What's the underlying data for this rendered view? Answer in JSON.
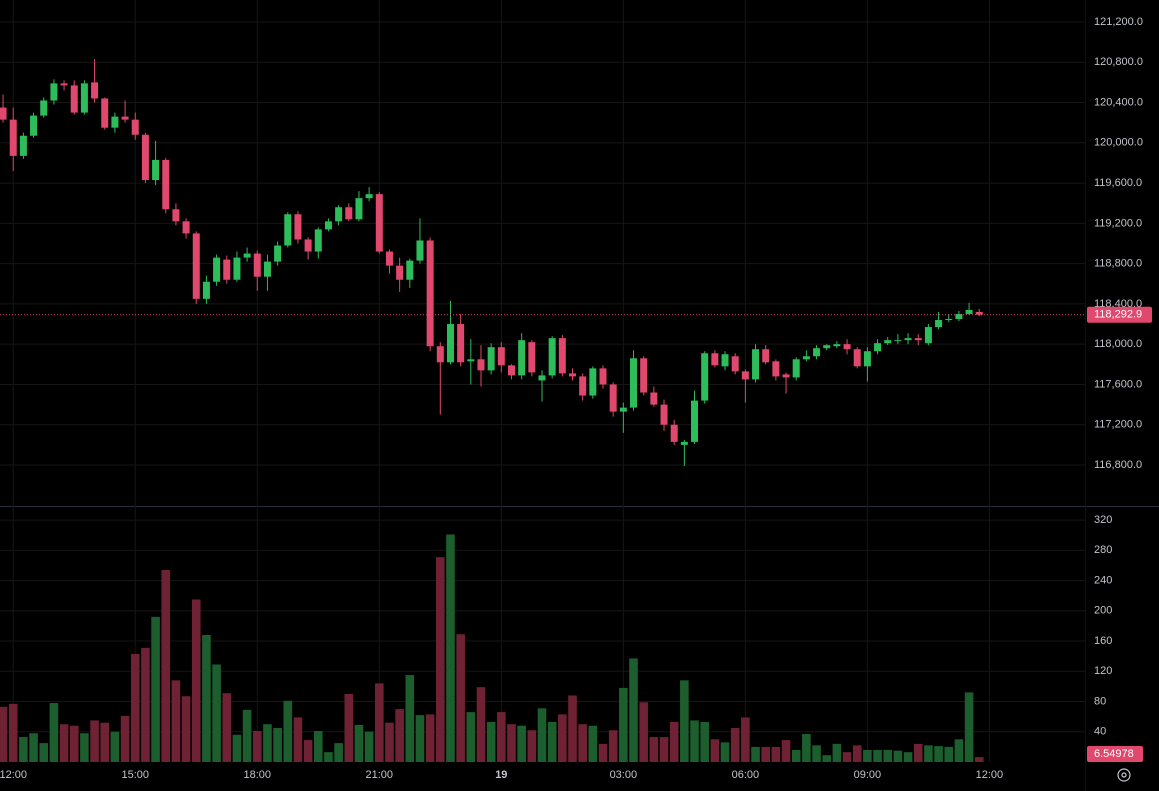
{
  "chart_data": {
    "type": "candlestick",
    "up_color": "#2dbd5a",
    "down_color": "#e0486e",
    "volume_up_color": "#1c5e2d",
    "volume_down_color": "#6e2234",
    "grid": true,
    "xlim": [
      -0.3,
      106.4
    ],
    "xticks": [
      {
        "value": 1,
        "label": "12:00"
      },
      {
        "value": 13,
        "label": "15:00"
      },
      {
        "value": 25,
        "label": "18:00"
      },
      {
        "value": 37,
        "label": "21:00"
      },
      {
        "value": 49,
        "label": "19"
      },
      {
        "value": 61,
        "label": "03:00"
      },
      {
        "value": 73,
        "label": "06:00"
      },
      {
        "value": 85,
        "label": "09:00"
      },
      {
        "value": 97,
        "label": "12:00"
      }
    ],
    "ylim": [
      116403,
      121418
    ],
    "yticks": [
      {
        "value": 116800,
        "label": "116,800.0"
      },
      {
        "value": 117200,
        "label": "117,200.0"
      },
      {
        "value": 117600,
        "label": "117,600.0"
      },
      {
        "value": 118000,
        "label": "118,000.0"
      },
      {
        "value": 118400,
        "label": "118,400.0"
      },
      {
        "value": 118800,
        "label": "118,800.0"
      },
      {
        "value": 119200,
        "label": "119,200.0"
      },
      {
        "value": 119600,
        "label": "119,600.0"
      },
      {
        "value": 120000,
        "label": "120,000.0"
      },
      {
        "value": 120400,
        "label": "120,400.0"
      },
      {
        "value": 120800,
        "label": "120,800.0"
      },
      {
        "value": 121200,
        "label": "121,200.0"
      }
    ],
    "open": [
      120350,
      120230,
      119870,
      120070,
      120270,
      120420,
      120590,
      120570,
      120300,
      120600,
      120440,
      120150,
      120260,
      120230,
      120080,
      119630,
      119830,
      119340,
      119220,
      119100,
      118450,
      118620,
      118840,
      118640,
      118860,
      118900,
      118670,
      118820,
      118980,
      119290,
      119040,
      118920,
      119140,
      119220,
      119360,
      119240,
      119450,
      119490,
      118920,
      118780,
      118640,
      118830,
      119030,
      117980,
      117820,
      118200,
      117830,
      117850,
      117740,
      117970,
      117790,
      117690,
      118020,
      117640,
      117690,
      118060,
      117710,
      117680,
      117490,
      117760,
      117600,
      117330,
      117370,
      117860,
      117520,
      117400,
      117200,
      117000,
      117030,
      117440,
      117910,
      117780,
      117880,
      117730,
      117650,
      117950,
      117830,
      117700,
      117670,
      117850,
      117880,
      117960,
      117980,
      118000,
      117950,
      117780,
      117930,
      118010,
      118030,
      118040,
      118060,
      118010,
      118170,
      118240,
      118250,
      118300,
      118320
    ],
    "high": [
      120480,
      120350,
      120100,
      120300,
      120450,
      120630,
      120620,
      120620,
      120620,
      120830,
      120450,
      120300,
      120420,
      120300,
      120100,
      120020,
      119850,
      119400,
      119250,
      119120,
      118680,
      118890,
      118880,
      118920,
      118960,
      118930,
      118890,
      119020,
      119310,
      119320,
      119060,
      119160,
      119250,
      119380,
      119400,
      119520,
      119560,
      119510,
      118940,
      118860,
      118850,
      119250,
      119060,
      118020,
      118430,
      118300,
      118050,
      117990,
      118010,
      118020,
      117800,
      118110,
      118040,
      117740,
      118080,
      118090,
      117760,
      117710,
      117780,
      117790,
      117620,
      117420,
      117940,
      117880,
      117580,
      117450,
      117250,
      117050,
      117540,
      117930,
      117940,
      117930,
      117910,
      117750,
      118000,
      117990,
      117850,
      117720,
      117870,
      117940,
      117990,
      118000,
      118030,
      118050,
      117970,
      117970,
      118050,
      118070,
      118100,
      118110,
      118100,
      118200,
      118320,
      118300,
      118330,
      118410,
      118350
    ],
    "low": [
      120200,
      119720,
      119840,
      120050,
      120250,
      120380,
      120520,
      120280,
      120280,
      120400,
      120130,
      120100,
      120200,
      120030,
      119600,
      119580,
      119300,
      119180,
      119050,
      118400,
      118400,
      118580,
      118600,
      118620,
      118820,
      118530,
      118530,
      118780,
      118960,
      119000,
      118840,
      118850,
      119120,
      119180,
      119220,
      119220,
      119420,
      118900,
      118700,
      118520,
      118560,
      118800,
      117930,
      117300,
      117800,
      117780,
      117600,
      117580,
      117700,
      117720,
      117650,
      117650,
      117680,
      117430,
      117660,
      117680,
      117640,
      117440,
      117460,
      117560,
      117280,
      117120,
      117340,
      117490,
      117380,
      117140,
      117000,
      116790,
      117010,
      117410,
      117770,
      117740,
      117700,
      117420,
      117620,
      117800,
      117640,
      117510,
      117640,
      117830,
      117850,
      117940,
      117960,
      117900,
      117760,
      117630,
      117900,
      117990,
      118000,
      118000,
      117990,
      117990,
      118150,
      118220,
      118230,
      118290,
      118280
    ],
    "close": [
      120230,
      119870,
      120070,
      120270,
      120420,
      120590,
      120570,
      120300,
      120590,
      120440,
      120150,
      120260,
      120230,
      120080,
      119630,
      119830,
      119340,
      119220,
      119100,
      118450,
      118620,
      118860,
      118640,
      118860,
      118900,
      118670,
      118820,
      118980,
      119290,
      119040,
      118920,
      119140,
      119220,
      119360,
      119240,
      119450,
      119490,
      118920,
      118780,
      118640,
      118830,
      119030,
      117980,
      117820,
      118200,
      117820,
      117850,
      117740,
      117970,
      117790,
      117690,
      118040,
      117720,
      117690,
      118060,
      117710,
      117680,
      117490,
      117760,
      117600,
      117330,
      117370,
      117860,
      117520,
      117400,
      117200,
      117030,
      117030,
      117440,
      117910,
      117790,
      117900,
      117730,
      117650,
      117950,
      117820,
      117680,
      117670,
      117850,
      117880,
      117960,
      117990,
      118000,
      117950,
      117780,
      117930,
      118010,
      118040,
      118040,
      118060,
      118040,
      118170,
      118240,
      118250,
      118300,
      118340,
      118292.9
    ],
    "last_label": {
      "value": 118292.9,
      "label": "118,292.9"
    },
    "volume": {
      "ylim": [
        0,
        336
      ],
      "yticks": [
        40,
        80,
        120,
        160,
        200,
        240,
        280,
        320
      ],
      "values": [
        73,
        77,
        33,
        38,
        25,
        78,
        50,
        48,
        38,
        55,
        52,
        40,
        61,
        143,
        151,
        192,
        254,
        108,
        87,
        215,
        168,
        129,
        91,
        36,
        69,
        41,
        50,
        45,
        81,
        59,
        29,
        41,
        13,
        25,
        90,
        49,
        40,
        104,
        52,
        70,
        115,
        62,
        63,
        271,
        301,
        169,
        66,
        99,
        53,
        66,
        50,
        48,
        42,
        71,
        53,
        63,
        88,
        50,
        48,
        24,
        42,
        98,
        137,
        79,
        33,
        33,
        53,
        108,
        55,
        53,
        30,
        26,
        45,
        59,
        20,
        20,
        20,
        29,
        16,
        37,
        22,
        9,
        24,
        13,
        22,
        16,
        16,
        16,
        15,
        13,
        24,
        22,
        21,
        20,
        30,
        92,
        6.54978
      ]
    }
  }
}
